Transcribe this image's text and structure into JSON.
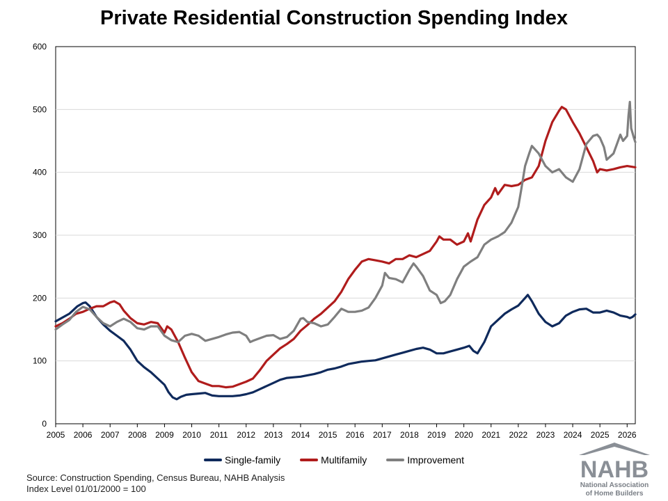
{
  "chart_data": {
    "type": "line",
    "title": "Private Residential Construction Spending Index",
    "xlabel": "",
    "ylabel": "",
    "ylim": [
      0,
      600
    ],
    "xlim": [
      2005,
      2026.3
    ],
    "y_ticks": [
      "0",
      "100",
      "200",
      "300",
      "400",
      "500",
      "600"
    ],
    "x_ticks": [
      "2005",
      "2006",
      "2007",
      "2008",
      "2009",
      "2010",
      "2011",
      "2012",
      "2013",
      "2014",
      "2015",
      "2016",
      "2017",
      "2018",
      "2019",
      "2020",
      "2021",
      "2022",
      "2023",
      "2024",
      "2025",
      "2026"
    ],
    "grid": true,
    "legend_position": "bottom",
    "series": [
      {
        "name": "Single-family",
        "color": "#0f2a5c",
        "points": [
          [
            2005.0,
            163
          ],
          [
            2005.5,
            175
          ],
          [
            2005.8,
            187
          ],
          [
            2006.0,
            192
          ],
          [
            2006.1,
            193
          ],
          [
            2006.25,
            187
          ],
          [
            2006.5,
            170
          ],
          [
            2006.75,
            158
          ],
          [
            2007.0,
            148
          ],
          [
            2007.25,
            140
          ],
          [
            2007.5,
            132
          ],
          [
            2007.75,
            118
          ],
          [
            2008.0,
            100
          ],
          [
            2008.25,
            90
          ],
          [
            2008.5,
            82
          ],
          [
            2008.75,
            72
          ],
          [
            2009.0,
            62
          ],
          [
            2009.15,
            50
          ],
          [
            2009.3,
            42
          ],
          [
            2009.45,
            39
          ],
          [
            2009.6,
            43
          ],
          [
            2009.8,
            46
          ],
          [
            2010.0,
            47
          ],
          [
            2010.25,
            48
          ],
          [
            2010.5,
            49
          ],
          [
            2010.75,
            45
          ],
          [
            2011.0,
            44
          ],
          [
            2011.25,
            44
          ],
          [
            2011.5,
            44
          ],
          [
            2011.75,
            45
          ],
          [
            2012.0,
            47
          ],
          [
            2012.25,
            50
          ],
          [
            2012.5,
            55
          ],
          [
            2012.75,
            60
          ],
          [
            2013.0,
            65
          ],
          [
            2013.25,
            70
          ],
          [
            2013.5,
            73
          ],
          [
            2013.75,
            74
          ],
          [
            2014.0,
            75
          ],
          [
            2014.25,
            77
          ],
          [
            2014.5,
            79
          ],
          [
            2014.75,
            82
          ],
          [
            2015.0,
            86
          ],
          [
            2015.25,
            88
          ],
          [
            2015.5,
            91
          ],
          [
            2015.75,
            95
          ],
          [
            2016.0,
            97
          ],
          [
            2016.25,
            99
          ],
          [
            2016.5,
            100
          ],
          [
            2016.75,
            101
          ],
          [
            2017.0,
            104
          ],
          [
            2017.25,
            107
          ],
          [
            2017.5,
            110
          ],
          [
            2017.75,
            113
          ],
          [
            2018.0,
            116
          ],
          [
            2018.25,
            119
          ],
          [
            2018.5,
            121
          ],
          [
            2018.75,
            118
          ],
          [
            2019.0,
            112
          ],
          [
            2019.25,
            112
          ],
          [
            2019.5,
            115
          ],
          [
            2019.75,
            118
          ],
          [
            2020.0,
            121
          ],
          [
            2020.2,
            124
          ],
          [
            2020.35,
            116
          ],
          [
            2020.5,
            112
          ],
          [
            2020.75,
            130
          ],
          [
            2021.0,
            155
          ],
          [
            2021.25,
            165
          ],
          [
            2021.5,
            175
          ],
          [
            2021.75,
            182
          ],
          [
            2022.0,
            188
          ],
          [
            2022.25,
            200
          ],
          [
            2022.35,
            205
          ],
          [
            2022.5,
            195
          ],
          [
            2022.75,
            175
          ],
          [
            2023.0,
            162
          ],
          [
            2023.25,
            155
          ],
          [
            2023.5,
            160
          ],
          [
            2023.75,
            172
          ],
          [
            2024.0,
            178
          ],
          [
            2024.25,
            182
          ],
          [
            2024.5,
            183
          ],
          [
            2024.75,
            177
          ],
          [
            2025.0,
            177
          ],
          [
            2025.25,
            180
          ],
          [
            2025.5,
            177
          ],
          [
            2025.75,
            172
          ],
          [
            2026.0,
            170
          ],
          [
            2026.1,
            168
          ],
          [
            2026.2,
            170
          ],
          [
            2026.3,
            174
          ]
        ]
      },
      {
        "name": "Multifamily",
        "color": "#b01c1c",
        "points": [
          [
            2005.0,
            155
          ],
          [
            2005.25,
            160
          ],
          [
            2005.5,
            167
          ],
          [
            2005.75,
            175
          ],
          [
            2006.0,
            178
          ],
          [
            2006.25,
            183
          ],
          [
            2006.5,
            187
          ],
          [
            2006.75,
            187
          ],
          [
            2007.0,
            193
          ],
          [
            2007.15,
            195
          ],
          [
            2007.35,
            190
          ],
          [
            2007.5,
            180
          ],
          [
            2007.75,
            168
          ],
          [
            2008.0,
            160
          ],
          [
            2008.25,
            158
          ],
          [
            2008.5,
            162
          ],
          [
            2008.75,
            160
          ],
          [
            2009.0,
            145
          ],
          [
            2009.1,
            155
          ],
          [
            2009.25,
            150
          ],
          [
            2009.5,
            130
          ],
          [
            2009.75,
            105
          ],
          [
            2010.0,
            82
          ],
          [
            2010.25,
            68
          ],
          [
            2010.5,
            64
          ],
          [
            2010.75,
            60
          ],
          [
            2011.0,
            60
          ],
          [
            2011.25,
            58
          ],
          [
            2011.5,
            59
          ],
          [
            2011.75,
            63
          ],
          [
            2012.0,
            67
          ],
          [
            2012.25,
            72
          ],
          [
            2012.5,
            85
          ],
          [
            2012.75,
            100
          ],
          [
            2013.0,
            110
          ],
          [
            2013.25,
            120
          ],
          [
            2013.5,
            127
          ],
          [
            2013.75,
            135
          ],
          [
            2014.0,
            148
          ],
          [
            2014.25,
            157
          ],
          [
            2014.5,
            167
          ],
          [
            2014.75,
            175
          ],
          [
            2015.0,
            185
          ],
          [
            2015.25,
            195
          ],
          [
            2015.5,
            210
          ],
          [
            2015.75,
            230
          ],
          [
            2016.0,
            245
          ],
          [
            2016.25,
            258
          ],
          [
            2016.5,
            262
          ],
          [
            2016.75,
            260
          ],
          [
            2017.0,
            258
          ],
          [
            2017.25,
            255
          ],
          [
            2017.5,
            262
          ],
          [
            2017.75,
            262
          ],
          [
            2018.0,
            268
          ],
          [
            2018.25,
            265
          ],
          [
            2018.5,
            270
          ],
          [
            2018.75,
            275
          ],
          [
            2019.0,
            290
          ],
          [
            2019.1,
            298
          ],
          [
            2019.25,
            293
          ],
          [
            2019.5,
            293
          ],
          [
            2019.75,
            285
          ],
          [
            2020.0,
            290
          ],
          [
            2020.15,
            303
          ],
          [
            2020.25,
            290
          ],
          [
            2020.5,
            325
          ],
          [
            2020.75,
            348
          ],
          [
            2021.0,
            360
          ],
          [
            2021.15,
            375
          ],
          [
            2021.25,
            365
          ],
          [
            2021.5,
            380
          ],
          [
            2021.75,
            378
          ],
          [
            2022.0,
            380
          ],
          [
            2022.25,
            388
          ],
          [
            2022.5,
            392
          ],
          [
            2022.75,
            410
          ],
          [
            2023.0,
            450
          ],
          [
            2023.25,
            480
          ],
          [
            2023.5,
            498
          ],
          [
            2023.6,
            504
          ],
          [
            2023.75,
            500
          ],
          [
            2024.0,
            480
          ],
          [
            2024.25,
            462
          ],
          [
            2024.5,
            440
          ],
          [
            2024.75,
            418
          ],
          [
            2024.9,
            400
          ],
          [
            2025.0,
            405
          ],
          [
            2025.25,
            403
          ],
          [
            2025.5,
            405
          ],
          [
            2025.75,
            408
          ],
          [
            2026.0,
            410
          ],
          [
            2026.3,
            408
          ]
        ]
      },
      {
        "name": "Improvement",
        "color": "#7f7f7f",
        "points": [
          [
            2005.0,
            150
          ],
          [
            2005.25,
            158
          ],
          [
            2005.5,
            165
          ],
          [
            2005.75,
            178
          ],
          [
            2006.0,
            186
          ],
          [
            2006.25,
            182
          ],
          [
            2006.5,
            170
          ],
          [
            2006.75,
            160
          ],
          [
            2007.0,
            155
          ],
          [
            2007.25,
            162
          ],
          [
            2007.5,
            167
          ],
          [
            2007.75,
            162
          ],
          [
            2008.0,
            152
          ],
          [
            2008.25,
            150
          ],
          [
            2008.5,
            155
          ],
          [
            2008.75,
            155
          ],
          [
            2009.0,
            140
          ],
          [
            2009.25,
            133
          ],
          [
            2009.5,
            130
          ],
          [
            2009.75,
            140
          ],
          [
            2010.0,
            143
          ],
          [
            2010.25,
            140
          ],
          [
            2010.5,
            132
          ],
          [
            2010.75,
            135
          ],
          [
            2011.0,
            138
          ],
          [
            2011.25,
            142
          ],
          [
            2011.5,
            145
          ],
          [
            2011.75,
            146
          ],
          [
            2012.0,
            140
          ],
          [
            2012.15,
            130
          ],
          [
            2012.25,
            132
          ],
          [
            2012.5,
            136
          ],
          [
            2012.75,
            140
          ],
          [
            2013.0,
            141
          ],
          [
            2013.25,
            135
          ],
          [
            2013.5,
            138
          ],
          [
            2013.75,
            148
          ],
          [
            2014.0,
            167
          ],
          [
            2014.1,
            168
          ],
          [
            2014.25,
            162
          ],
          [
            2014.5,
            160
          ],
          [
            2014.75,
            155
          ],
          [
            2015.0,
            158
          ],
          [
            2015.25,
            170
          ],
          [
            2015.5,
            183
          ],
          [
            2015.75,
            178
          ],
          [
            2016.0,
            178
          ],
          [
            2016.25,
            180
          ],
          [
            2016.5,
            185
          ],
          [
            2016.75,
            200
          ],
          [
            2017.0,
            220
          ],
          [
            2017.1,
            240
          ],
          [
            2017.25,
            232
          ],
          [
            2017.5,
            230
          ],
          [
            2017.75,
            225
          ],
          [
            2018.0,
            245
          ],
          [
            2018.15,
            255
          ],
          [
            2018.25,
            250
          ],
          [
            2018.5,
            235
          ],
          [
            2018.75,
            212
          ],
          [
            2019.0,
            205
          ],
          [
            2019.15,
            192
          ],
          [
            2019.3,
            195
          ],
          [
            2019.5,
            205
          ],
          [
            2019.75,
            230
          ],
          [
            2020.0,
            250
          ],
          [
            2020.25,
            258
          ],
          [
            2020.5,
            265
          ],
          [
            2020.75,
            285
          ],
          [
            2021.0,
            293
          ],
          [
            2021.25,
            298
          ],
          [
            2021.5,
            305
          ],
          [
            2021.75,
            320
          ],
          [
            2022.0,
            345
          ],
          [
            2022.1,
            370
          ],
          [
            2022.25,
            410
          ],
          [
            2022.4,
            430
          ],
          [
            2022.5,
            442
          ],
          [
            2022.75,
            430
          ],
          [
            2023.0,
            410
          ],
          [
            2023.25,
            400
          ],
          [
            2023.5,
            405
          ],
          [
            2023.75,
            392
          ],
          [
            2024.0,
            385
          ],
          [
            2024.1,
            393
          ],
          [
            2024.25,
            405
          ],
          [
            2024.5,
            445
          ],
          [
            2024.75,
            458
          ],
          [
            2024.9,
            460
          ],
          [
            2025.0,
            455
          ],
          [
            2025.15,
            440
          ],
          [
            2025.25,
            420
          ],
          [
            2025.5,
            430
          ],
          [
            2025.75,
            460
          ],
          [
            2025.85,
            450
          ],
          [
            2026.0,
            458
          ],
          [
            2026.05,
            490
          ],
          [
            2026.1,
            512
          ],
          [
            2026.15,
            470
          ],
          [
            2026.25,
            455
          ],
          [
            2026.3,
            448
          ]
        ]
      }
    ]
  },
  "legend": [
    {
      "label": "Single-family",
      "color": "#0f2a5c"
    },
    {
      "label": "Multifamily",
      "color": "#b01c1c"
    },
    {
      "label": "Improvement",
      "color": "#7f7f7f"
    }
  ],
  "source": {
    "line1": "Source: Construction Spending, Census Bureau, NAHB Analysis",
    "line2": "Index Level 01/01/2000 = 100"
  },
  "logo": {
    "name": "NAHB",
    "line1": "National Association",
    "line2": "of Home Builders"
  }
}
